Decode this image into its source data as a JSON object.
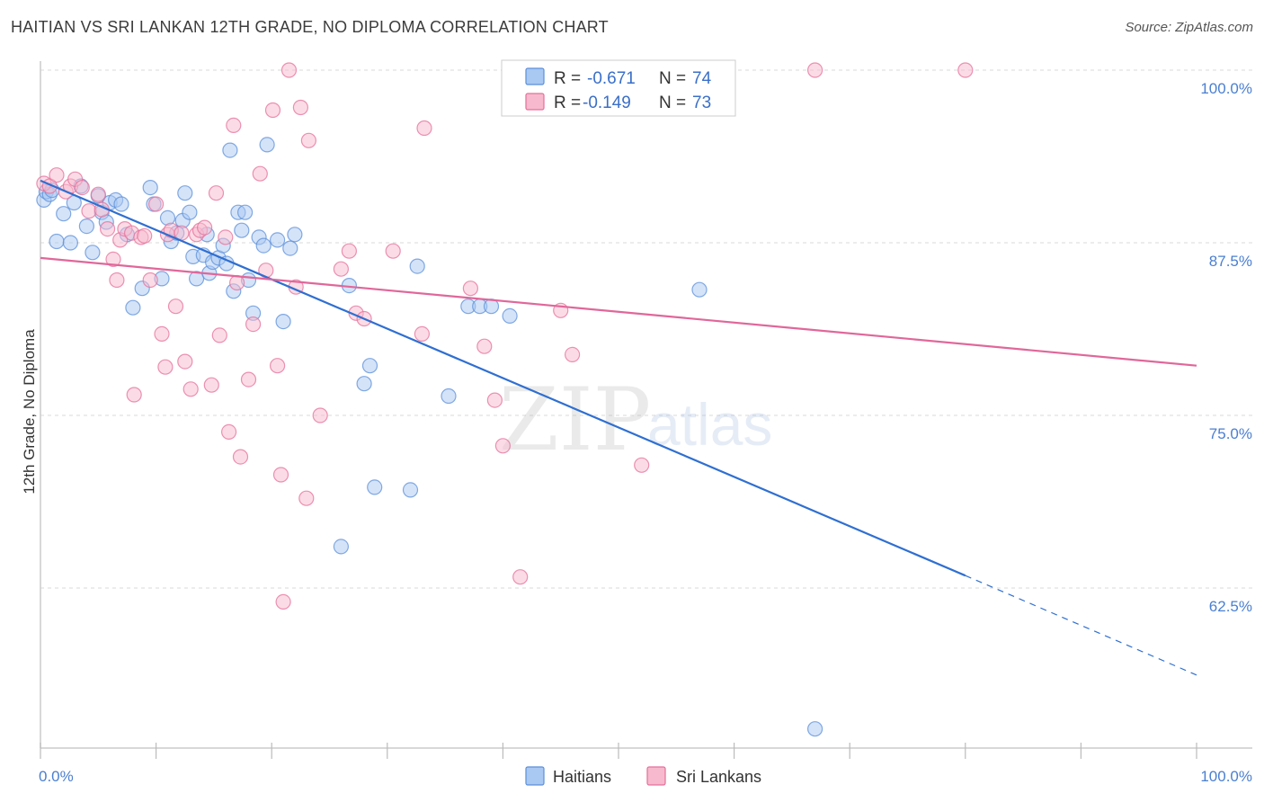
{
  "title": "HAITIAN VS SRI LANKAN 12TH GRADE, NO DIPLOMA CORRELATION CHART",
  "source": "Source: ZipAtlas.com",
  "watermark": {
    "zip": "ZIP",
    "atlas": "atlas"
  },
  "colors": {
    "haitians": "#5b8fd9",
    "haitians_fill": "#a9c8f2",
    "haitians_line": "#2f6fd1",
    "srilankans": "#e66f9a",
    "srilankans_fill": "#f7b9cd",
    "srilankans_line": "#e0679a",
    "grid": "#d8d8d8",
    "tick": "#4a7fd0"
  },
  "legend": {
    "rows": [
      {
        "r_label": "R = ",
        "r_value": "-0.671",
        "n_label": "N = ",
        "n_value": "74"
      },
      {
        "r_label": "R = ",
        "r_value": "-0.149",
        "n_label": "N = ",
        "n_value": "73"
      }
    ]
  },
  "chart_data": {
    "type": "scatter",
    "title": "HAITIAN VS SRI LANKAN 12TH GRADE, NO DIPLOMA CORRELATION CHART",
    "xlabel": "",
    "ylabel": "12th Grade, No Diploma",
    "xlim": [
      0,
      100
    ],
    "ylim": [
      50.2,
      103
    ],
    "x_tick_labels": [
      "0.0%",
      "100.0%"
    ],
    "y_ticks": [
      62.5,
      75.0,
      87.5,
      100.0
    ],
    "y_tick_labels": [
      "62.5%",
      "75.0%",
      "87.5%",
      "100.0%"
    ],
    "grid": true,
    "legend_position": "top-center",
    "series": [
      {
        "name": "Haitians",
        "r": -0.671,
        "n": 74,
        "trend": {
          "x0": 0,
          "y0": 92.0,
          "x1": 80,
          "y1": 63.4,
          "dashed_to_x": 100,
          "dashed_to_y": 56.2
        },
        "points": [
          [
            0.3,
            90.6
          ],
          [
            0.5,
            91.2
          ],
          [
            0.8,
            91.0
          ],
          [
            1.0,
            91.3
          ],
          [
            1.4,
            87.6
          ],
          [
            2.0,
            89.6
          ],
          [
            2.6,
            87.5
          ],
          [
            2.9,
            90.4
          ],
          [
            3.5,
            91.6
          ],
          [
            4.0,
            88.7
          ],
          [
            4.5,
            86.8
          ],
          [
            5.0,
            90.9
          ],
          [
            5.3,
            89.7
          ],
          [
            5.7,
            89.0
          ],
          [
            6.0,
            90.4
          ],
          [
            6.5,
            90.6
          ],
          [
            7.0,
            90.3
          ],
          [
            7.5,
            88.1
          ],
          [
            8.0,
            82.8
          ],
          [
            8.8,
            84.2
          ],
          [
            9.5,
            91.5
          ],
          [
            9.8,
            90.3
          ],
          [
            10.5,
            84.9
          ],
          [
            11.0,
            89.3
          ],
          [
            11.3,
            87.6
          ],
          [
            11.8,
            88.2
          ],
          [
            12.3,
            89.1
          ],
          [
            12.5,
            91.1
          ],
          [
            12.9,
            89.7
          ],
          [
            13.2,
            86.5
          ],
          [
            13.5,
            84.9
          ],
          [
            14.1,
            86.6
          ],
          [
            14.4,
            88.1
          ],
          [
            14.6,
            85.3
          ],
          [
            14.9,
            86.1
          ],
          [
            15.4,
            86.4
          ],
          [
            15.8,
            87.3
          ],
          [
            16.1,
            86.0
          ],
          [
            16.4,
            94.2
          ],
          [
            16.7,
            84.0
          ],
          [
            17.1,
            89.7
          ],
          [
            17.4,
            88.4
          ],
          [
            17.7,
            89.7
          ],
          [
            18.0,
            84.8
          ],
          [
            18.4,
            82.4
          ],
          [
            18.9,
            87.9
          ],
          [
            19.3,
            87.3
          ],
          [
            19.6,
            94.6
          ],
          [
            20.5,
            87.7
          ],
          [
            21.0,
            81.8
          ],
          [
            21.6,
            87.1
          ],
          [
            22.0,
            88.1
          ],
          [
            26.7,
            84.4
          ],
          [
            28.5,
            78.6
          ],
          [
            28.9,
            69.8
          ],
          [
            28.0,
            77.3
          ],
          [
            26.0,
            65.5
          ],
          [
            32.0,
            69.6
          ],
          [
            32.6,
            85.8
          ],
          [
            35.3,
            76.4
          ],
          [
            37.0,
            82.9
          ],
          [
            38.0,
            82.9
          ],
          [
            39.0,
            82.9
          ],
          [
            40.6,
            82.2
          ],
          [
            57.0,
            84.1
          ],
          [
            67.0,
            52.3
          ]
        ]
      },
      {
        "name": "Sri Lankans",
        "r": -0.149,
        "n": 73,
        "trend": {
          "x0": 0,
          "y0": 86.4,
          "x1": 100,
          "y1": 78.6
        },
        "points": [
          [
            0.3,
            91.8
          ],
          [
            0.8,
            91.6
          ],
          [
            1.4,
            92.4
          ],
          [
            2.2,
            91.2
          ],
          [
            2.6,
            91.6
          ],
          [
            3.0,
            92.1
          ],
          [
            3.6,
            91.5
          ],
          [
            4.2,
            89.8
          ],
          [
            5.0,
            91.0
          ],
          [
            5.3,
            89.9
          ],
          [
            5.8,
            88.5
          ],
          [
            6.3,
            86.3
          ],
          [
            6.6,
            84.8
          ],
          [
            6.9,
            87.7
          ],
          [
            7.3,
            88.5
          ],
          [
            7.9,
            88.2
          ],
          [
            8.1,
            76.5
          ],
          [
            8.7,
            87.9
          ],
          [
            9.0,
            88.0
          ],
          [
            9.5,
            84.8
          ],
          [
            10.0,
            90.3
          ],
          [
            10.5,
            80.9
          ],
          [
            10.8,
            78.5
          ],
          [
            11.0,
            88.1
          ],
          [
            11.3,
            88.4
          ],
          [
            11.7,
            82.9
          ],
          [
            12.2,
            88.2
          ],
          [
            12.5,
            78.9
          ],
          [
            13.0,
            76.9
          ],
          [
            13.5,
            88.1
          ],
          [
            13.8,
            88.4
          ],
          [
            14.2,
            88.6
          ],
          [
            14.8,
            77.2
          ],
          [
            15.2,
            91.1
          ],
          [
            15.5,
            80.8
          ],
          [
            16.0,
            87.9
          ],
          [
            16.3,
            73.8
          ],
          [
            16.7,
            96.0
          ],
          [
            17.0,
            84.6
          ],
          [
            17.3,
            72.0
          ],
          [
            18.0,
            77.6
          ],
          [
            18.4,
            81.6
          ],
          [
            19.0,
            92.5
          ],
          [
            19.5,
            85.5
          ],
          [
            20.1,
            97.1
          ],
          [
            20.5,
            78.6
          ],
          [
            20.8,
            70.7
          ],
          [
            21.5,
            100.0
          ],
          [
            22.1,
            84.3
          ],
          [
            22.5,
            97.3
          ],
          [
            23.0,
            69.0
          ],
          [
            23.2,
            94.9
          ],
          [
            24.2,
            75.0
          ],
          [
            26.0,
            85.6
          ],
          [
            26.7,
            86.9
          ],
          [
            27.3,
            82.4
          ],
          [
            28.0,
            82.0
          ],
          [
            30.5,
            86.9
          ],
          [
            33.0,
            80.9
          ],
          [
            33.2,
            95.8
          ],
          [
            37.2,
            84.2
          ],
          [
            38.4,
            80.0
          ],
          [
            39.3,
            76.1
          ],
          [
            40.0,
            72.8
          ],
          [
            41.5,
            63.3
          ],
          [
            45.0,
            82.6
          ],
          [
            46.0,
            79.4
          ],
          [
            52.0,
            71.4
          ],
          [
            67.0,
            100.0
          ],
          [
            80.0,
            100.0
          ],
          [
            21.0,
            61.5
          ]
        ]
      }
    ]
  },
  "bottom_legend": [
    "Haitians",
    "Sri Lankans"
  ]
}
